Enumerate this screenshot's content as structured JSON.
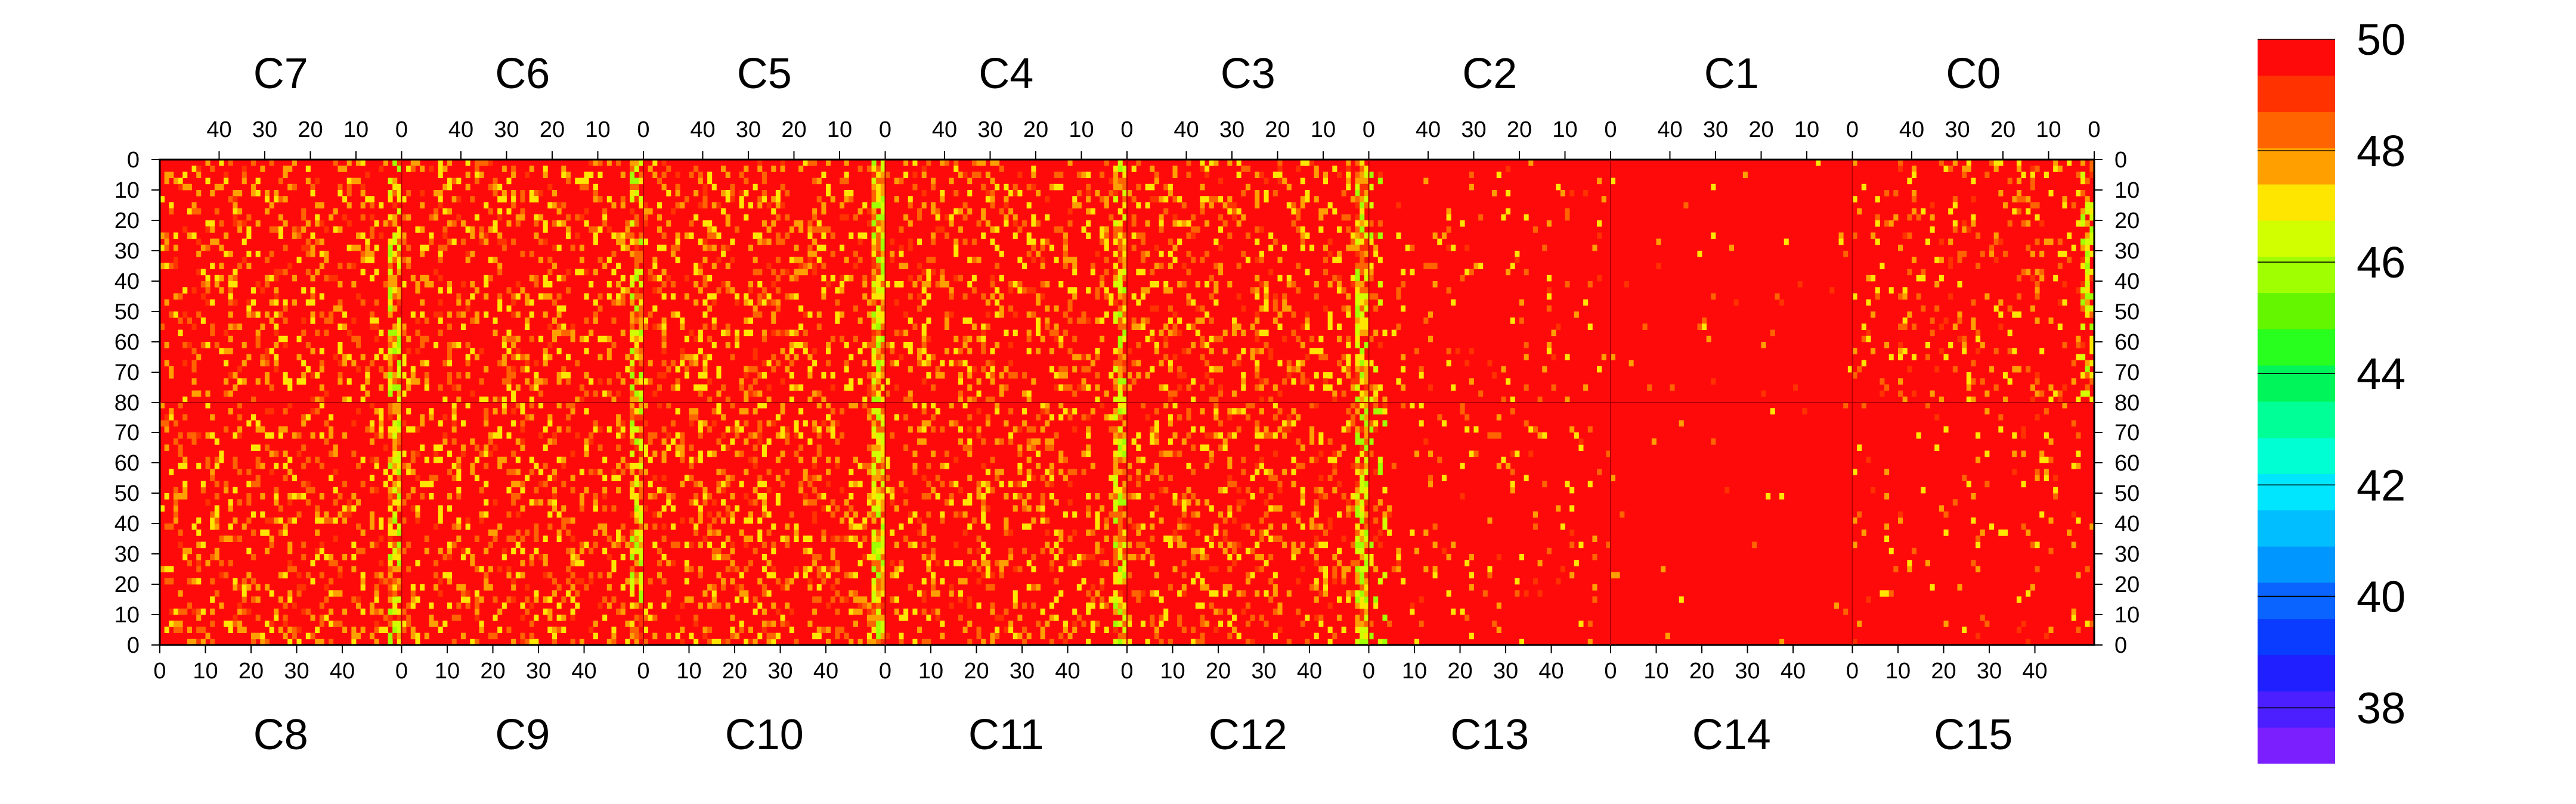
{
  "chart_data": {
    "type": "heatmap",
    "title": "",
    "top_panels": [
      "C7",
      "C6",
      "C5",
      "C4",
      "C3",
      "C2",
      "C1",
      "C0"
    ],
    "bottom_panels": [
      "C8",
      "C9",
      "C10",
      "C11",
      "C12",
      "C13",
      "C14",
      "C15"
    ],
    "x_ticks_top": [
      40,
      30,
      20,
      10,
      0
    ],
    "x_ticks_bottom": [
      0,
      10,
      20,
      30,
      40
    ],
    "x_range": [
      0,
      53
    ],
    "y_ticks_top": [
      0,
      10,
      20,
      30,
      40,
      50,
      60,
      70,
      80
    ],
    "y_ticks_bottom": [
      80,
      70,
      60,
      50,
      40,
      30,
      20,
      10,
      0
    ],
    "y_range": [
      0,
      80
    ],
    "colorbar": {
      "min": 37,
      "max": 50,
      "tick_values": [
        50,
        48,
        46,
        44,
        42,
        40,
        38
      ],
      "tick_labels": [
        "50",
        "48",
        "46",
        "44",
        "42",
        "40",
        "38"
      ],
      "colors": [
        "#7B1FFF",
        "#4B1FFF",
        "#1F1FFF",
        "#0A3CFF",
        "#0A64FF",
        "#0096FF",
        "#00BEFF",
        "#00E6FF",
        "#00FFD2",
        "#00FF96",
        "#00F55A",
        "#28FF1E",
        "#64F500",
        "#A0FF00",
        "#D2FF00",
        "#FFE600",
        "#FFA000",
        "#FF6400",
        "#FF3200",
        "#FF0A0A"
      ]
    },
    "default_value": 50,
    "panel_profiles": {
      "C7": "noisy (mostly 48-50), hot column near x=0 (46-49)",
      "C6": "noisy, hot column near x=0",
      "C5": "noisy, strong column near x=0 (45-49)",
      "C4": "noisy, column near x=0",
      "C3": "noisy, strong column near x=0",
      "C2": "sparse noise at high x, otherwise 50",
      "C1": "mostly 50",
      "C0": "noisy, column near x=0",
      "C8": "noisy, column near x=50",
      "C9": "noisy, column near x=50",
      "C10": "noisy, strong column near x=50",
      "C11": "noisy, column near x=50",
      "C12": "noisy, strong column near x=50",
      "C13": "noisy at low x, otherwise 50",
      "C14": "mostly 50",
      "C15": "mostly 50 with sparse noise"
    }
  }
}
